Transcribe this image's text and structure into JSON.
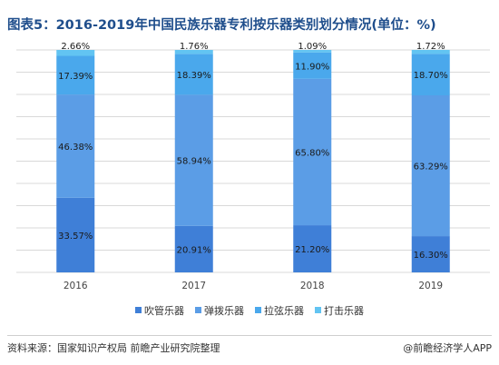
{
  "title": "图表5：2016-2019年中国民族乐器专利按乐器类别划分情况(单位：%)",
  "chart_data": {
    "type": "bar",
    "stacked": true,
    "categories": [
      "2016",
      "2017",
      "2018",
      "2019"
    ],
    "series": [
      {
        "name": "吹管乐器",
        "color": "#3f7fd7",
        "values": [
          33.57,
          20.91,
          21.2,
          16.3
        ],
        "labels": [
          "33.57%",
          "20.91%",
          "21.20%",
          "16.30%"
        ]
      },
      {
        "name": "弹拨乐器",
        "color": "#5b9de6",
        "values": [
          46.38,
          58.94,
          65.8,
          63.29
        ],
        "labels": [
          "46.38%",
          "58.94%",
          "65.80%",
          "63.29%"
        ]
      },
      {
        "name": "拉弦乐器",
        "color": "#4aa8ec",
        "values": [
          17.39,
          18.39,
          11.9,
          18.7
        ],
        "labels": [
          "17.39%",
          "18.39%",
          "11.90%",
          "18.70%"
        ]
      },
      {
        "name": "打击乐器",
        "color": "#62c4f2",
        "values": [
          2.66,
          1.76,
          1.09,
          1.72
        ],
        "labels": [
          "2.66%",
          "1.76%",
          "1.09%",
          "1.72%"
        ]
      }
    ],
    "ylim": [
      0,
      100
    ],
    "grid": true,
    "legend": "bottom"
  },
  "source": "资料来源：国家知识产权局 前瞻产业研究院整理",
  "brand": "@前瞻经济学人APP"
}
